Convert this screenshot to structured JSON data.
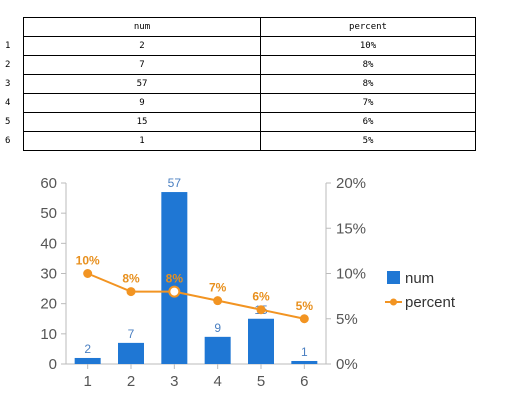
{
  "table": {
    "headers": [
      "num",
      "percent"
    ],
    "rows": [
      {
        "index": "1",
        "num": "2",
        "percent": "10%"
      },
      {
        "index": "2",
        "num": "7",
        "percent": "8%"
      },
      {
        "index": "3",
        "num": "57",
        "percent": "8%"
      },
      {
        "index": "4",
        "num": "9",
        "percent": "7%"
      },
      {
        "index": "5",
        "num": "15",
        "percent": "6%"
      },
      {
        "index": "6",
        "num": "1",
        "percent": "5%"
      }
    ]
  },
  "chart_data": {
    "type": "bar",
    "categories": [
      "1",
      "2",
      "3",
      "4",
      "5",
      "6"
    ],
    "series": [
      {
        "name": "num",
        "type": "bar",
        "axis": "left",
        "values": [
          2,
          7,
          57,
          9,
          15,
          1
        ],
        "labels": [
          "2",
          "7",
          "57",
          "9",
          "15",
          "1"
        ]
      },
      {
        "name": "percent",
        "type": "line",
        "axis": "right",
        "values": [
          10,
          8,
          8,
          7,
          6,
          5
        ],
        "labels": [
          "10%",
          "8%",
          "8%",
          "7%",
          "6%",
          "5%"
        ]
      }
    ],
    "y_left": {
      "min": 0,
      "max": 60,
      "ticks": [
        "0",
        "10",
        "20",
        "30",
        "40",
        "50",
        "60"
      ]
    },
    "y_right": {
      "min": 0,
      "max": 20,
      "ticks": [
        "0%",
        "5%",
        "10%",
        "15%",
        "20%"
      ]
    },
    "grid": false,
    "legend_position": "right",
    "colors": {
      "bar": "#1f77d4",
      "line": "#f29422",
      "axis": "#bbbbbb"
    }
  }
}
